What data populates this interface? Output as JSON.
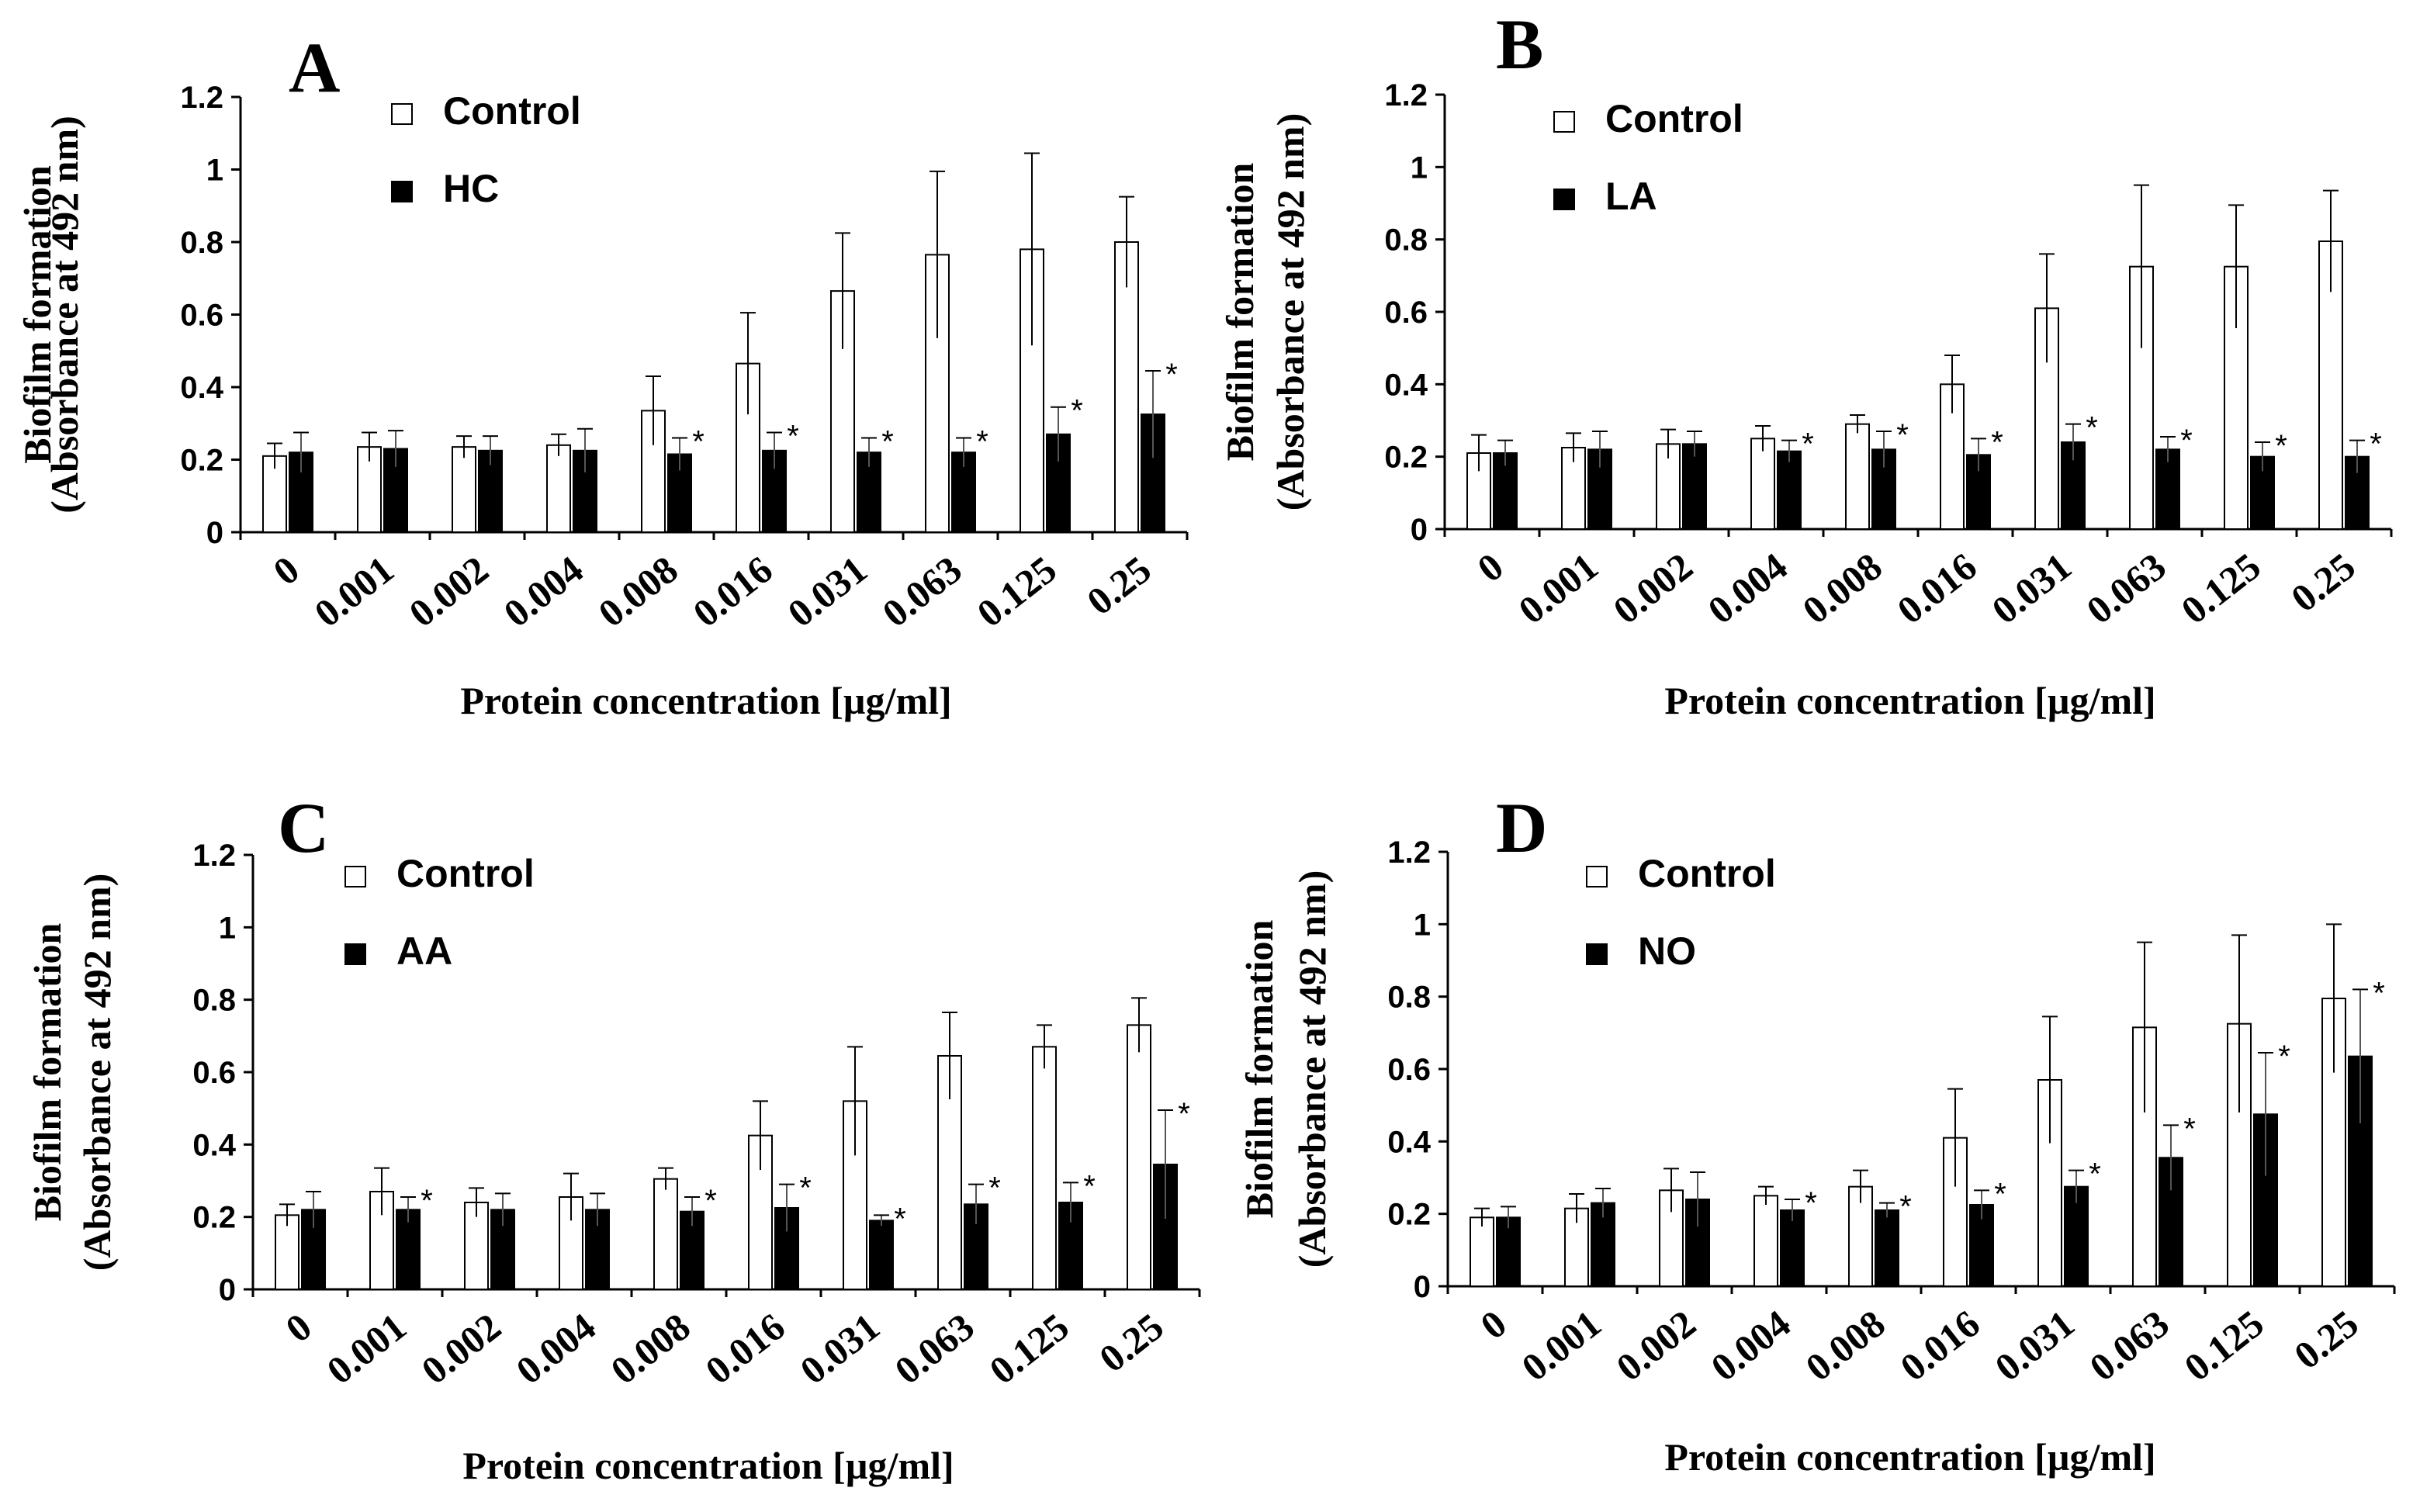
{
  "figure": {
    "colors": {
      "control_fill": "#ffffff",
      "treatment_fill": "#000000",
      "stroke": "#000000"
    }
  },
  "chart_data": [
    {
      "type": "bar",
      "panel": "A",
      "categories": [
        "0",
        "0.001",
        "0.002",
        "0.004",
        "0.008",
        "0.016",
        "0.031",
        "0.063",
        "0.125",
        "0.25"
      ],
      "xlabel": "Protein concentration [µg/ml]",
      "ylabel_line1": "Biofilm  formation",
      "ylabel_line2": "(Absorbance at 492 nm)",
      "ylim": [
        0,
        1.2
      ],
      "yticks": [
        0,
        0.2,
        0.4,
        0.6,
        0.8,
        1,
        1.2
      ],
      "ytick_labels": [
        "0",
        "0.2",
        "0.4",
        "0.6",
        "0.8",
        "1",
        "1.2"
      ],
      "legend_position": "top-left",
      "series": [
        {
          "name": "Control",
          "values": [
            0.21,
            0.235,
            0.235,
            0.24,
            0.335,
            0.465,
            0.665,
            0.765,
            0.78,
            0.8
          ],
          "errors": [
            0.035,
            0.04,
            0.03,
            0.03,
            0.095,
            0.14,
            0.16,
            0.23,
            0.265,
            0.125
          ]
        },
        {
          "name": "HC",
          "values": [
            0.22,
            0.23,
            0.225,
            0.225,
            0.215,
            0.225,
            0.22,
            0.22,
            0.27,
            0.325
          ],
          "errors": [
            0.055,
            0.05,
            0.04,
            0.06,
            0.045,
            0.05,
            0.04,
            0.04,
            0.075,
            0.12
          ]
        }
      ],
      "significance": [
        "",
        "",
        "",
        "",
        "*",
        "*",
        "*",
        "*",
        "*",
        "*"
      ]
    },
    {
      "type": "bar",
      "panel": "B",
      "categories": [
        "0",
        "0.001",
        "0.002",
        "0.004",
        "0.008",
        "0.016",
        "0.031",
        "0.063",
        "0.125",
        "0.25"
      ],
      "xlabel": "Protein concentration [µg/ml]",
      "ylabel_line1": "Biofilm  formation",
      "ylabel_line2": "(Absorbance at 492 nm)",
      "ylim": [
        0,
        1.2
      ],
      "yticks": [
        0,
        0.2,
        0.4,
        0.6,
        0.8,
        1,
        1.2
      ],
      "ytick_labels": [
        "0",
        "0.2",
        "0.4",
        "0.6",
        "0.8",
        "1",
        "1.2"
      ],
      "legend_position": "top-left",
      "series": [
        {
          "name": "Control",
          "values": [
            0.21,
            0.225,
            0.235,
            0.25,
            0.29,
            0.4,
            0.61,
            0.725,
            0.725,
            0.795
          ],
          "errors": [
            0.05,
            0.04,
            0.04,
            0.035,
            0.025,
            0.08,
            0.15,
            0.225,
            0.17,
            0.14
          ]
        },
        {
          "name": "LA",
          "values": [
            0.21,
            0.22,
            0.235,
            0.215,
            0.22,
            0.205,
            0.24,
            0.22,
            0.2,
            0.2
          ],
          "errors": [
            0.035,
            0.05,
            0.035,
            0.03,
            0.05,
            0.045,
            0.05,
            0.035,
            0.04,
            0.045
          ]
        }
      ],
      "significance": [
        "",
        "",
        "",
        "*",
        "*",
        "*",
        "*",
        "*",
        "*",
        "*"
      ]
    },
    {
      "type": "bar",
      "panel": "C",
      "categories": [
        "0",
        "0.001",
        "0.002",
        "0.004",
        "0.008",
        "0.016",
        "0.031",
        "0.063",
        "0.125",
        "0.25"
      ],
      "xlabel": "Protein concentration [µg/ml]",
      "ylabel_line1": "Biofilm  formation",
      "ylabel_line2": "(Absorbance at 492 nm)",
      "ylim": [
        0,
        1.2
      ],
      "yticks": [
        0,
        0.2,
        0.4,
        0.6,
        0.8,
        1,
        1.2
      ],
      "ytick_labels": [
        "0",
        "0.2",
        "0.4",
        "0.6",
        "0.8",
        "1",
        "1.2"
      ],
      "legend_position": "top-left",
      "series": [
        {
          "name": "Control",
          "values": [
            0.205,
            0.27,
            0.24,
            0.255,
            0.305,
            0.425,
            0.52,
            0.645,
            0.67,
            0.73
          ],
          "errors": [
            0.03,
            0.065,
            0.04,
            0.065,
            0.03,
            0.095,
            0.15,
            0.12,
            0.06,
            0.075
          ]
        },
        {
          "name": "AA",
          "values": [
            0.22,
            0.22,
            0.22,
            0.22,
            0.215,
            0.225,
            0.19,
            0.235,
            0.24,
            0.345
          ],
          "errors": [
            0.05,
            0.035,
            0.045,
            0.045,
            0.04,
            0.065,
            0.015,
            0.055,
            0.055,
            0.15
          ]
        }
      ],
      "significance": [
        "",
        "*",
        "",
        "",
        "*",
        "*",
        "*",
        "*",
        "*",
        "*"
      ]
    },
    {
      "type": "bar",
      "panel": "D",
      "categories": [
        "0",
        "0.001",
        "0.002",
        "0.004",
        "0.008",
        "0.016",
        "0.031",
        "0.063",
        "0.125",
        "0.25"
      ],
      "xlabel": "Protein concentration [µg/ml]",
      "ylabel_line1": "Biofilm  formation",
      "ylabel_line2": "(Absorbance at 492 nm)",
      "ylim": [
        0,
        1.2
      ],
      "yticks": [
        0,
        0.2,
        0.4,
        0.6,
        0.8,
        1,
        1.2
      ],
      "ytick_labels": [
        "0",
        "0.2",
        "0.4",
        "0.6",
        "0.8",
        "1",
        "1.2"
      ],
      "legend_position": "top-left",
      "series": [
        {
          "name": "Control",
          "values": [
            0.19,
            0.215,
            0.265,
            0.25,
            0.275,
            0.41,
            0.57,
            0.715,
            0.725,
            0.795
          ],
          "errors": [
            0.025,
            0.04,
            0.06,
            0.025,
            0.045,
            0.135,
            0.175,
            0.235,
            0.245,
            0.205
          ]
        },
        {
          "name": "NO",
          "values": [
            0.19,
            0.23,
            0.24,
            0.21,
            0.21,
            0.225,
            0.275,
            0.355,
            0.475,
            0.635
          ],
          "errors": [
            0.03,
            0.04,
            0.075,
            0.03,
            0.02,
            0.04,
            0.045,
            0.09,
            0.17,
            0.185
          ]
        }
      ],
      "significance": [
        "",
        "",
        "",
        "*",
        "*",
        "*",
        "*",
        "*",
        "*",
        "*"
      ]
    }
  ]
}
